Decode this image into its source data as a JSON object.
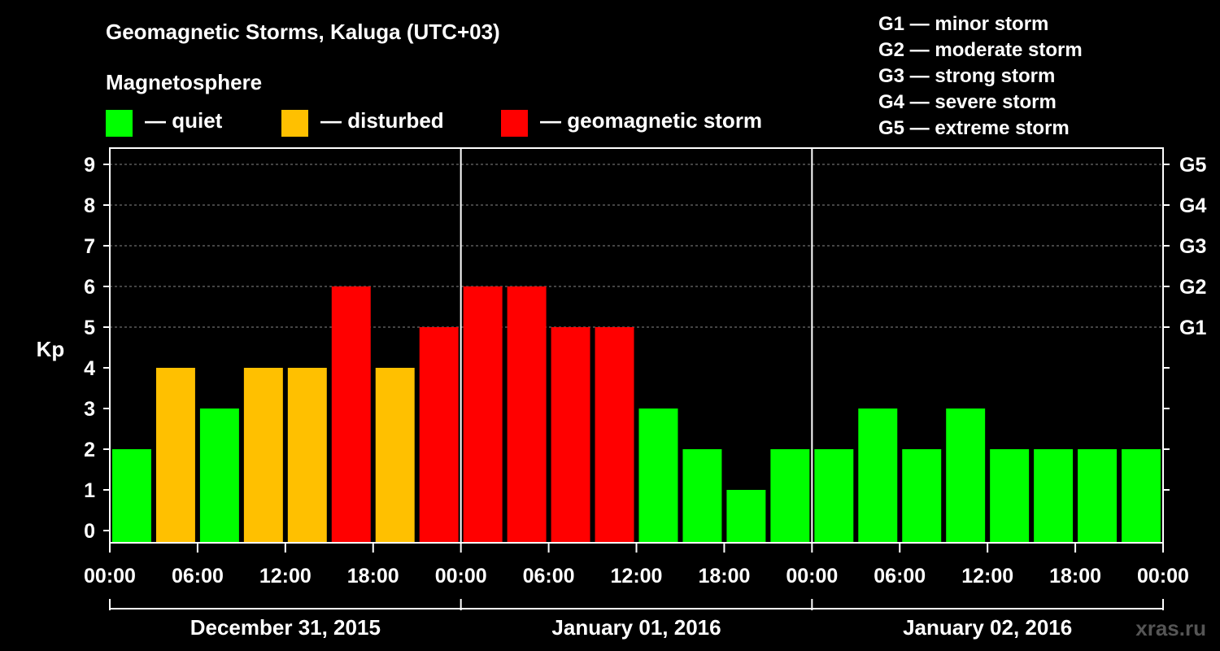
{
  "title": "Geomagnetic Storms, Kaluga (UTC+03)",
  "subtitle": "Magnetosphere",
  "legend": [
    {
      "label": "— quiet",
      "color": "#00ff00"
    },
    {
      "label": "— disturbed",
      "color": "#ffc000"
    },
    {
      "label": "— geomagnetic storm",
      "color": "#ff0000"
    }
  ],
  "g_scale": [
    "G1 — minor storm",
    "G2 — moderate storm",
    "G3 — strong storm",
    "G4 — severe storm",
    "G5 — extreme storm"
  ],
  "watermark": "xras.ru",
  "colors": {
    "quiet": "#00ff00",
    "disturbed": "#ffc000",
    "storm": "#ff0000",
    "grid": "#888888",
    "axis": "#ffffff"
  },
  "chart_data": {
    "type": "bar",
    "ylabel": "Kp",
    "ylim": [
      0,
      9
    ],
    "yticks": [
      0,
      1,
      2,
      3,
      4,
      5,
      6,
      7,
      8,
      9
    ],
    "right_axis_labels": [
      {
        "kp": 5,
        "label": "G1"
      },
      {
        "kp": 6,
        "label": "G2"
      },
      {
        "kp": 7,
        "label": "G3"
      },
      {
        "kp": 8,
        "label": "G4"
      },
      {
        "kp": 9,
        "label": "G5"
      }
    ],
    "hours_total": 72,
    "bin_hours": 3,
    "xtick_hours": [
      0,
      6,
      12,
      18,
      24,
      30,
      36,
      42,
      48,
      54,
      60,
      66,
      72
    ],
    "xtick_labels": [
      "00:00",
      "06:00",
      "12:00",
      "18:00",
      "00:00",
      "06:00",
      "12:00",
      "18:00",
      "00:00",
      "06:00",
      "12:00",
      "18:00",
      "00:00"
    ],
    "days": [
      "December 31, 2015",
      "January 01, 2016",
      "January 02, 2016"
    ],
    "values": [
      2,
      4,
      3,
      4,
      4,
      6,
      4,
      5,
      6,
      6,
      5,
      5,
      3,
      2,
      1,
      2,
      2,
      3,
      2,
      3,
      2,
      2,
      2,
      2
    ],
    "categories": [
      "quiet",
      "disturbed",
      "quiet",
      "disturbed",
      "disturbed",
      "storm",
      "disturbed",
      "storm",
      "storm",
      "storm",
      "storm",
      "storm",
      "quiet",
      "quiet",
      "quiet",
      "quiet",
      "quiet",
      "quiet",
      "quiet",
      "quiet",
      "quiet",
      "quiet",
      "quiet",
      "quiet"
    ]
  }
}
